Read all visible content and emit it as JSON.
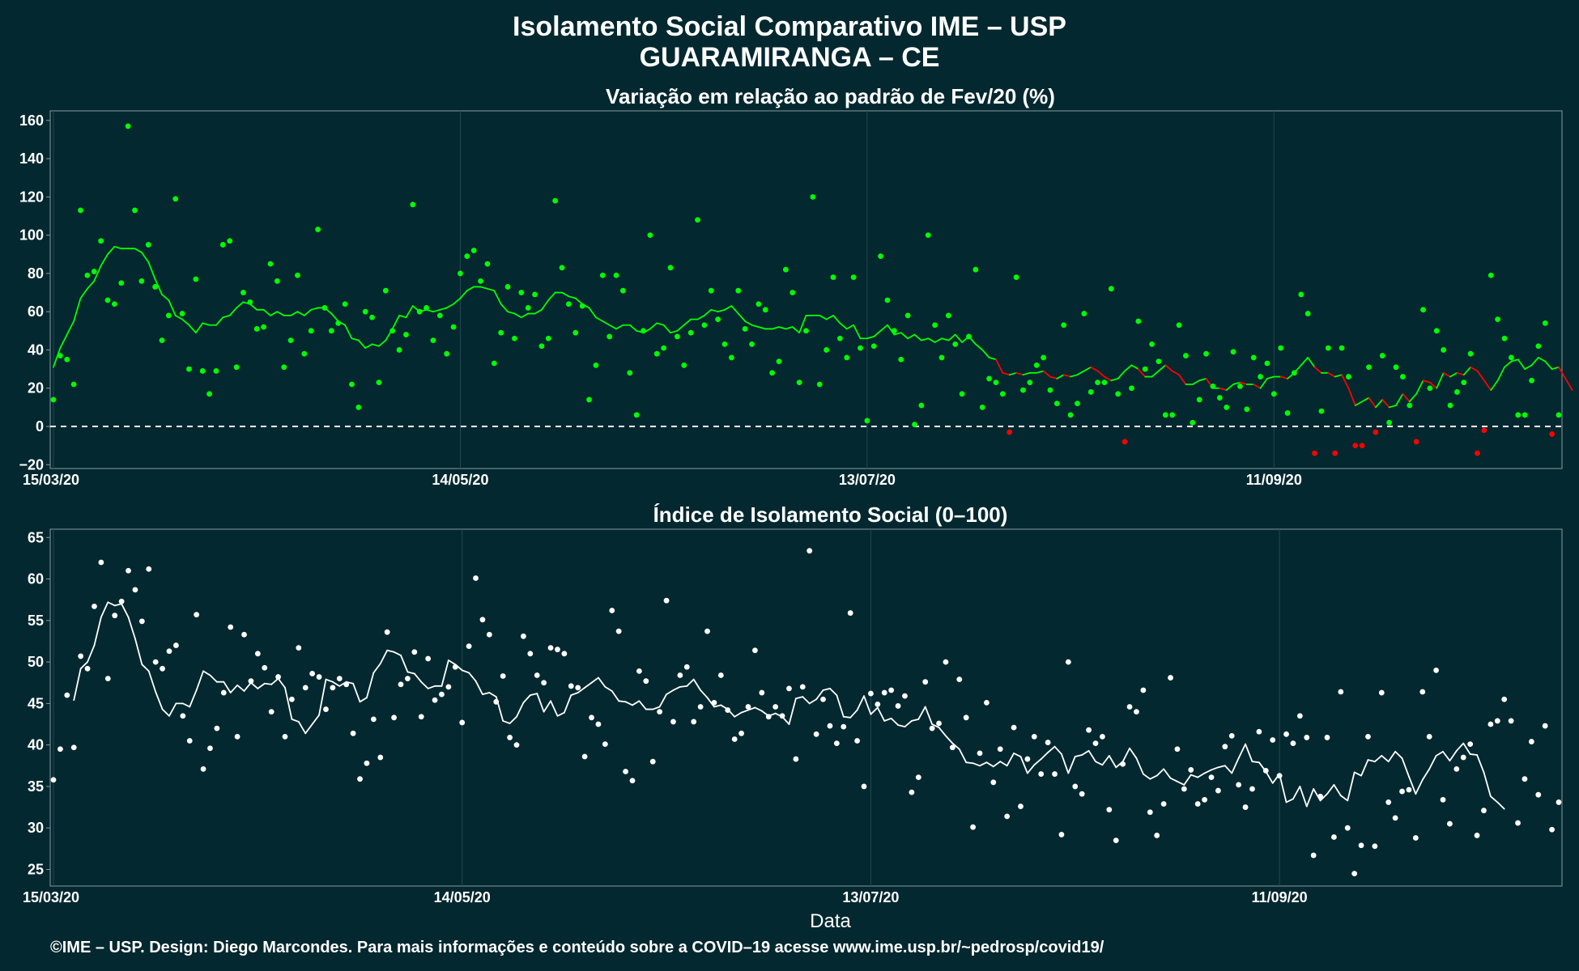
{
  "header": {
    "title_line1": "Isolamento Social Comparativo IME – USP",
    "title_line2": "GUARAMIRANGA – CE"
  },
  "footer": {
    "caption": "©IME – USP. Design: Diego Marcondes. Para mais informações e conteúdo sobre a COVID–19 acesse www.ime.usp.br/~pedrosp/covid19/"
  },
  "colors": {
    "background": "#03282f",
    "positive": "#00ff00",
    "negative": "#ff0000",
    "index": "#ffffff",
    "frame": "#8a9aa0",
    "grid": "#244850"
  },
  "chart_data": [
    {
      "type": "scatter",
      "title": "Variação em relação ao padrão de Fev/20 (%)",
      "xlabel": "",
      "ylabel": "",
      "x_start": "15/03/20",
      "x_ticks": [
        "15/03/20",
        "14/05/20",
        "13/07/20",
        "11/09/20"
      ],
      "ylim": [
        -22,
        165
      ],
      "yticks": [
        -20,
        0,
        20,
        40,
        60,
        80,
        100,
        120,
        140,
        160
      ],
      "reference_line": 0,
      "grid": true,
      "series": [
        {
          "kind": "daily",
          "values": [
            14,
            37,
            35,
            22,
            113,
            79,
            81,
            97,
            66,
            64,
            75,
            157,
            113,
            76,
            95,
            73,
            45,
            58,
            119,
            59,
            30,
            77,
            29,
            17,
            29,
            95,
            97,
            31,
            70,
            65,
            51,
            52,
            85,
            76,
            31,
            45,
            79,
            38,
            50,
            103,
            62,
            50,
            54,
            64,
            22,
            10,
            60,
            57,
            23,
            71,
            50,
            40,
            48,
            116,
            60,
            62,
            45,
            58,
            38,
            52,
            80,
            89,
            92,
            76,
            85,
            33,
            49,
            73,
            46,
            70,
            62,
            69,
            42,
            46,
            118,
            83,
            64,
            49,
            63,
            14,
            32,
            79,
            47,
            79,
            71,
            28,
            6,
            50,
            100,
            38,
            41,
            83,
            47,
            32,
            49,
            108,
            53,
            71,
            56,
            43,
            36,
            71,
            51,
            43,
            64,
            61,
            28,
            34,
            82,
            70,
            23,
            50,
            120,
            22,
            40,
            78,
            46,
            36,
            78,
            41,
            3,
            42,
            89,
            66,
            50,
            35,
            58,
            1,
            11,
            100,
            53,
            36,
            58,
            43,
            17,
            47,
            82,
            10,
            25,
            23,
            17,
            -3,
            78,
            19,
            23,
            32,
            36,
            19,
            12,
            53,
            6,
            12,
            59,
            18,
            23,
            23,
            72,
            17,
            -8,
            20,
            55,
            30,
            43,
            34,
            6,
            6,
            53,
            37,
            2,
            14,
            38,
            21,
            15,
            10,
            39,
            21,
            9,
            36,
            26,
            33,
            17,
            41,
            7,
            28,
            69,
            59,
            -14,
            8,
            41,
            -14,
            41,
            26,
            -10,
            -10,
            31,
            -3,
            37,
            2,
            31,
            26,
            11,
            -8,
            61,
            20,
            50,
            40,
            11,
            18,
            23,
            38,
            -14,
            -2,
            79,
            56,
            46,
            36,
            6,
            6,
            24,
            42,
            54,
            -4,
            6
          ]
        },
        {
          "kind": "moving_average",
          "values": [
            31,
            41,
            48,
            55,
            67,
            72,
            76,
            84,
            90,
            94,
            93,
            93,
            93,
            91,
            86,
            77,
            69,
            66,
            58,
            56,
            53,
            49,
            54,
            53,
            53,
            57,
            58,
            62,
            65,
            64,
            61,
            61,
            58,
            60,
            58,
            58,
            60,
            58,
            61,
            62,
            62,
            59,
            55,
            53,
            46,
            45,
            41,
            43,
            42,
            45,
            51,
            58,
            57,
            63,
            60,
            61,
            60,
            61,
            62,
            64,
            67,
            71,
            73,
            73,
            72,
            71,
            64,
            60,
            59,
            57,
            59,
            59,
            61,
            66,
            70,
            70,
            68,
            67,
            64,
            62,
            57,
            55,
            53,
            51,
            53,
            53,
            50,
            49,
            51,
            54,
            53,
            49,
            50,
            53,
            56,
            56,
            58,
            61,
            60,
            61,
            63,
            59,
            55,
            53,
            52,
            51,
            51,
            52,
            51,
            52,
            49,
            58,
            58,
            58,
            56,
            58,
            54,
            51,
            53,
            46,
            46,
            47,
            50,
            53,
            48,
            49,
            46,
            48,
            45,
            46,
            44,
            46,
            45,
            48,
            44,
            47,
            43,
            40,
            36,
            35,
            28,
            27,
            28,
            27,
            28,
            28,
            29,
            26,
            25,
            27,
            26,
            27,
            29,
            31,
            29,
            26,
            24,
            25,
            29,
            32,
            30,
            26,
            26,
            29,
            32,
            29,
            27,
            22,
            22,
            24,
            25,
            20,
            20,
            19,
            22,
            23,
            22,
            22,
            20,
            25,
            26,
            26,
            25,
            28,
            32,
            36,
            31,
            28,
            28,
            26,
            27,
            20,
            11,
            13,
            15,
            10,
            14,
            10,
            11,
            17,
            13,
            17,
            24,
            23,
            20,
            28,
            26,
            28,
            27,
            31,
            29,
            24,
            19,
            24,
            31,
            34,
            35,
            30,
            32,
            36,
            34,
            30,
            31,
            25,
            19
          ]
        }
      ]
    },
    {
      "type": "scatter",
      "title": "Índice de Isolamento Social (0–100)",
      "xlabel": "Data",
      "ylabel": "",
      "x_start": "15/03/20",
      "x_ticks": [
        "15/03/20",
        "14/05/20",
        "13/07/20",
        "11/09/20"
      ],
      "ylim": [
        23,
        66
      ],
      "yticks": [
        25,
        30,
        35,
        40,
        45,
        50,
        55,
        60,
        65
      ],
      "grid": true,
      "series": [
        {
          "kind": "daily",
          "values": [
            35.8,
            39.5,
            46,
            39.7,
            50.7,
            49.2,
            56.7,
            62,
            48,
            55.6,
            57.3,
            61,
            58.7,
            54.9,
            61.2,
            50,
            49.2,
            51.3,
            52,
            43.5,
            40.5,
            55.7,
            37.1,
            39.6,
            42,
            46.3,
            54.2,
            41,
            53.3,
            47.7,
            51,
            49.3,
            44,
            48.2,
            41,
            45.5,
            51.7,
            46.9,
            48.6,
            48.2,
            44.3,
            46.9,
            48,
            47.3,
            41.4,
            35.9,
            37.8,
            43.1,
            38.5,
            53.6,
            43.3,
            47.3,
            48,
            51.2,
            43.4,
            50.4,
            45.4,
            46.1,
            47,
            49.4,
            42.7,
            51.9,
            60.1,
            55.1,
            53.3,
            45.2,
            48.3,
            40.9,
            40,
            53.1,
            51,
            48.4,
            47.5,
            51.7,
            51.5,
            51,
            47.1,
            46.9,
            38.6,
            43.3,
            42.5,
            40.1,
            56.2,
            53.7,
            36.8,
            35.7,
            48.9,
            47.7,
            38,
            44,
            57.4,
            42.8,
            48.4,
            49.4,
            42.8,
            44.6,
            53.7,
            45.1,
            48.4,
            44.2,
            40.7,
            41.4,
            44.6,
            51.4,
            46.3,
            43.4,
            44.6,
            43.5,
            46.8,
            38.3,
            47,
            63.4,
            41.3,
            45.5,
            42.3,
            40.2,
            42.2,
            55.9,
            40.5,
            35,
            46.2,
            44.9,
            46.3,
            46.6,
            44.7,
            45.9,
            34.3,
            36.1,
            47.6,
            42,
            42.6,
            50,
            39.7,
            47.9,
            43.3,
            30.1,
            39,
            45.1,
            35.5,
            39.5,
            31.4,
            42.1,
            32.6,
            38.3,
            41,
            36.5,
            40.3,
            36.5,
            29.2,
            50,
            35,
            34.1,
            41.8,
            40.2,
            41,
            32.2,
            28.5,
            37.7,
            44.6,
            44,
            46.6,
            31.9,
            29.1,
            32.9,
            48.1,
            39.5,
            34.7,
            37,
            32.9,
            33.4,
            36.1,
            34.5,
            39.8,
            41.1,
            35.2,
            32.5,
            34.7,
            41.6,
            36.9,
            40.6,
            36.3,
            41.3,
            40.2,
            43.5,
            40.9,
            26.7,
            33.8,
            40.9,
            28.9,
            46.4,
            30,
            24.5,
            27.9,
            41,
            27.8,
            46.3,
            33.1,
            31.2,
            34.4,
            34.6,
            28.8,
            46.4,
            41,
            49,
            33.4,
            30.5,
            37.1,
            38.5,
            40.1,
            29.1,
            32.1,
            42.5,
            42.9,
            45.5,
            42.9,
            30.6,
            35.9,
            40.4,
            34,
            42.3,
            29.8,
            33.1
          ]
        },
        {
          "kind": "moving_average",
          "values": [
            null,
            null,
            null,
            45.4,
            49.2,
            50,
            52,
            55.4,
            57.2,
            56.8,
            57,
            55.4,
            52.8,
            49.7,
            48.9,
            46.4,
            44.3,
            43.5,
            45,
            45,
            44.6,
            46.6,
            48.9,
            48.4,
            47.6,
            47.6,
            46.3,
            47.2,
            46.5,
            47.5,
            46.8,
            47.4,
            47.3,
            48,
            46.9,
            43.1,
            42.8,
            41.4,
            42.5,
            43.6,
            47.9,
            47.6,
            47.1,
            47.6,
            47.4,
            45.2,
            45.7,
            48.7,
            49.8,
            51.4,
            51.2,
            50.8,
            48.8,
            48.6,
            47.6,
            46.8,
            47.1,
            47.1,
            50.2,
            49.7,
            49,
            48.7,
            47.7,
            46.1,
            46.3,
            45.8,
            42.9,
            42.6,
            43.4,
            45.1,
            46,
            46.2,
            44,
            45.3,
            43.5,
            43.9,
            46,
            46.3,
            46.9,
            47.5,
            48.1,
            47,
            46.5,
            45.3,
            45.2,
            44.8,
            45.3,
            44.3,
            44.3,
            44.6,
            46.1,
            46.6,
            47,
            47.1,
            47.9,
            46.6,
            45.7,
            44.6,
            44.8,
            44.3,
            43.4,
            43.9,
            44.2,
            44.5,
            44.1,
            43.5,
            43.8,
            43.4,
            42.5,
            45.6,
            45.8,
            45,
            45.5,
            46.6,
            46.8,
            46,
            43.4,
            43.3,
            44.2,
            45.9,
            43.7,
            44.5,
            42.9,
            43.2,
            42.4,
            42.2,
            42.9,
            43.1,
            44.6,
            42.5,
            42.1,
            41.1,
            40.2,
            39.5,
            37.9,
            37.8,
            37.5,
            37.9,
            37.4,
            38,
            37.5,
            39,
            38.6,
            36.6,
            37.6,
            38.3,
            39.1,
            39.8,
            38.9,
            36.6,
            38.6,
            38.8,
            39.3,
            38,
            37.6,
            38.7,
            37.3,
            38,
            39.6,
            38.4,
            36.5,
            35.9,
            36.3,
            37.1,
            36,
            35.6,
            35.2,
            36.4,
            36.1,
            36.6,
            37,
            37.3,
            37.5,
            36.6,
            38.4,
            40.1,
            38,
            37.9,
            36.8,
            35.4,
            36.5,
            33.1,
            33.5,
            35,
            32.6,
            34.7,
            33.3,
            34.1,
            35.2,
            33.9,
            33.3,
            36.7,
            36.3,
            38.2,
            38,
            38.7,
            38,
            39.2,
            38.4,
            36.2,
            34.1,
            35.8,
            37.1,
            38.7,
            39.2,
            38.1,
            39.3,
            40.2,
            38.9,
            38.8,
            36.7,
            33.8,
            33.1,
            32.3
          ]
        }
      ]
    }
  ]
}
